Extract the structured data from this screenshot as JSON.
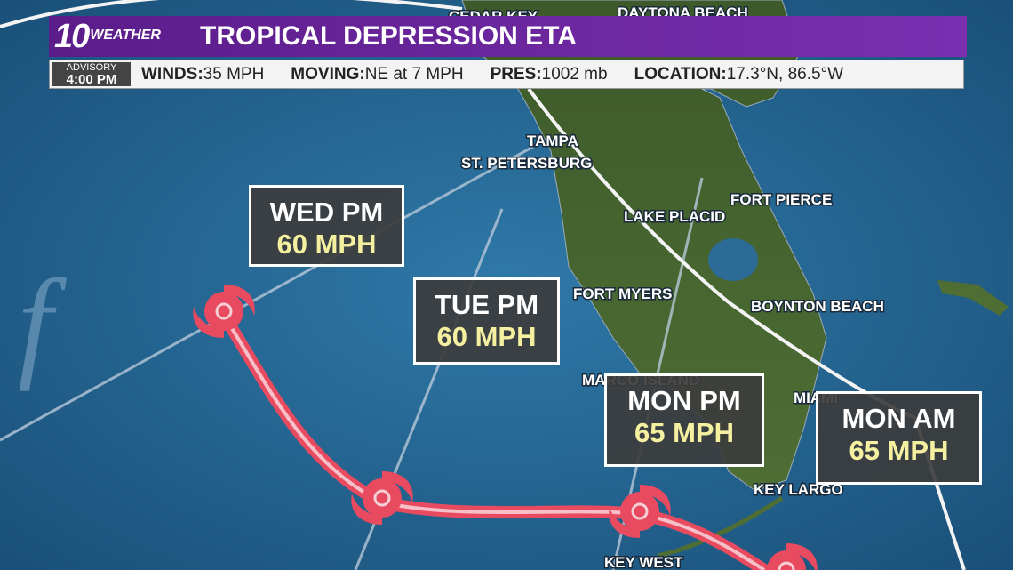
{
  "header": {
    "logo_number": "10",
    "logo_word": "WEATHER",
    "title": "TROPICAL DEPRESSION ETA"
  },
  "advisory": {
    "label": "ADVISORY",
    "time": "4:00 PM",
    "items": [
      {
        "label": "WINDS:",
        "value": "35 MPH"
      },
      {
        "label": "MOVING:",
        "value": "NE at 7 MPH"
      },
      {
        "label": "PRES:",
        "value": "1002 mb"
      },
      {
        "label": "LOCATION:",
        "value": "17.3°N, 86.5°W"
      }
    ]
  },
  "cities": [
    "DAYTONA BEACH",
    "CEDAR KEY",
    "TAMPA",
    "ST. PETERSBURG",
    "FORT PIERCE",
    "LAKE PLACID",
    "FORT MYERS",
    "BOYNTON BEACH",
    "MARCO ISLAND",
    "MIAMI",
    "KEY LARGO",
    "KEY WEST"
  ],
  "forecasts": [
    {
      "time": "WED PM",
      "wind": "60 MPH"
    },
    {
      "time": "TUE PM",
      "wind": "60 MPH"
    },
    {
      "time": "MON PM",
      "wind": "65 MPH"
    },
    {
      "time": "MON AM",
      "wind": "65 MPH"
    }
  ]
}
